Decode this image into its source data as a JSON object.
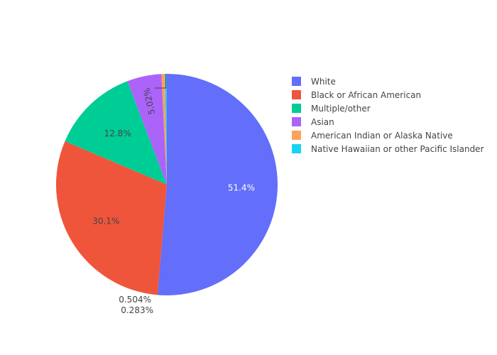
{
  "chart_data": {
    "type": "pie",
    "title": "",
    "legend_position": "right",
    "series": [
      {
        "categories": [
          "White",
          "Black or African American",
          "Multiple/other",
          "Asian",
          "American Indian or Alaska Native",
          "Native Hawaiian or other Pacific Islander"
        ],
        "values": [
          51.4,
          30.1,
          12.8,
          5.02,
          0.504,
          0.283
        ],
        "labels": [
          "51.4%",
          "30.1%",
          "12.8%",
          "5.02%",
          "0.504%",
          "0.283%"
        ],
        "colors": [
          "#636efa",
          "#EF553B",
          "#00cc96",
          "#ab63fa",
          "#FFA15A",
          "#19d3f3"
        ]
      }
    ]
  }
}
